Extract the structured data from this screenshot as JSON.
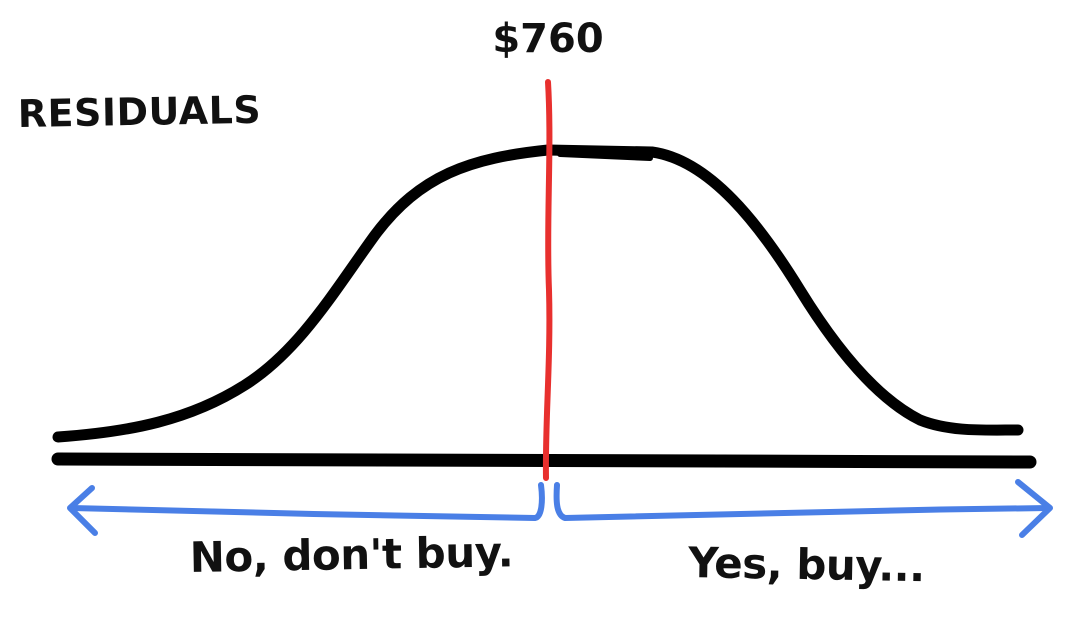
{
  "title": "RESIDUALS",
  "threshold": {
    "label": "$760",
    "color": "#e8302e"
  },
  "left_region": {
    "label": "No, don't buy."
  },
  "right_region": {
    "label": "Yes, buy..."
  },
  "colors": {
    "curve": "#000000",
    "baseline": "#000000",
    "arrows": "#4a7fe6",
    "text": "#111111"
  }
}
